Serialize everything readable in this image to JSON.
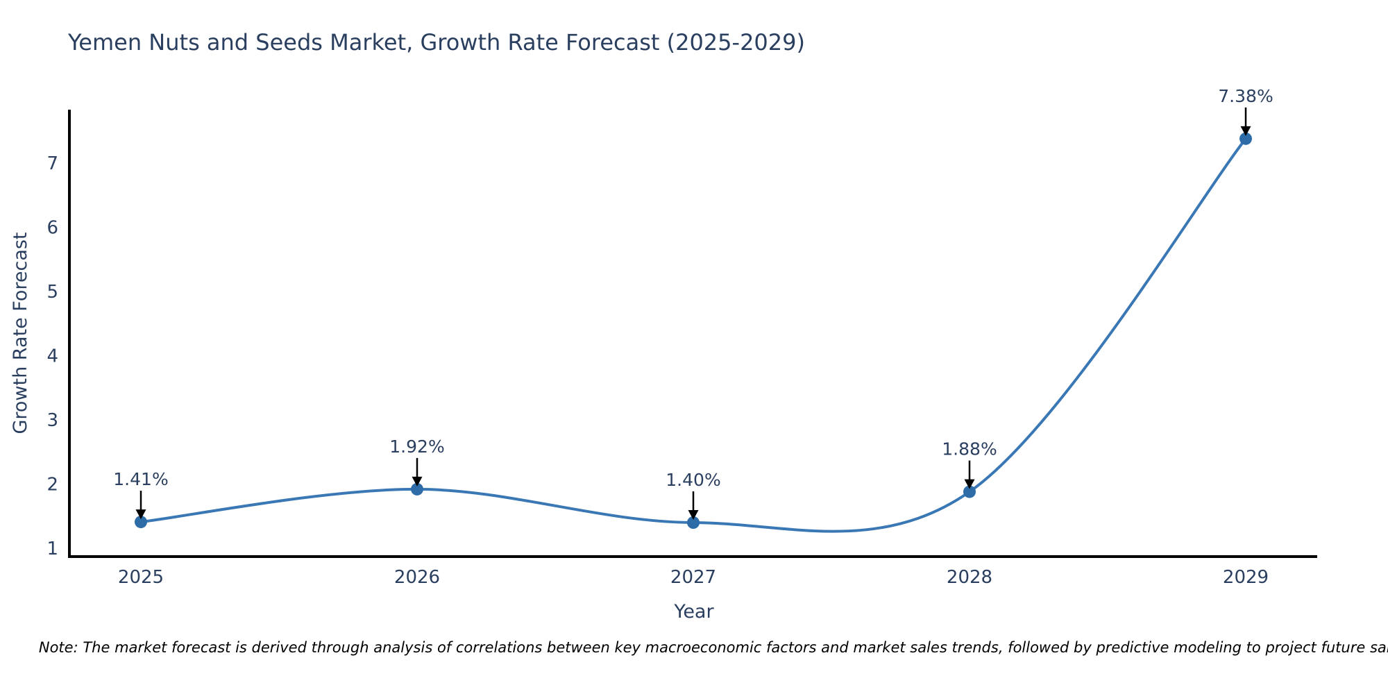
{
  "chart_data": {
    "type": "line",
    "title": "Yemen Nuts and Seeds Market, Growth Rate Forecast (2025-2029)",
    "xlabel": "Year",
    "ylabel": "Growth Rate Forecast",
    "x": [
      2025,
      2026,
      2027,
      2028,
      2029
    ],
    "values": [
      1.41,
      1.92,
      1.4,
      1.88,
      7.38
    ],
    "point_labels": [
      "1.41%",
      "1.92%",
      "1.40%",
      "1.88%",
      "7.38%"
    ],
    "x_tick_labels": [
      "2025",
      "2026",
      "2027",
      "2028",
      "2029"
    ],
    "y_ticks": [
      1,
      2,
      3,
      4,
      5,
      6,
      7
    ],
    "ylim": [
      0.87,
      7.83
    ],
    "line_shape": "spline",
    "grid": false,
    "legend_position": "none",
    "colors": {
      "line": "#3a78b5",
      "marker": "#2e6ca8",
      "axis": "#000000",
      "text": "#2a3f5f",
      "annotation_arrow": "#000000",
      "note": "#000000",
      "background": "#ffffff"
    }
  },
  "note": "Note: The market forecast is derived through analysis of correlations between key macroeconomic factors and market sales trends, followed by predictive modeling to project future sales."
}
